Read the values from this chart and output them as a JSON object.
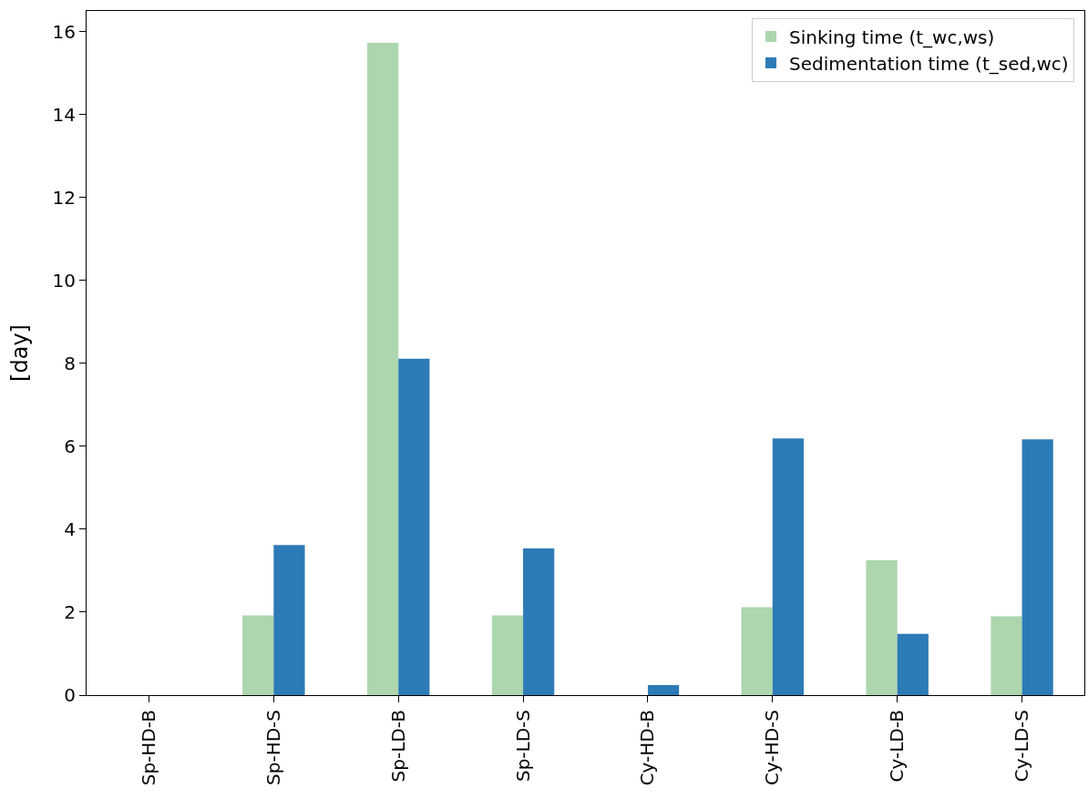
{
  "chart_data": {
    "type": "bar",
    "ylabel": "[day]",
    "categories": [
      "Sp-HD-B",
      "Sp-HD-S",
      "Sp-LD-B",
      "Sp-LD-S",
      "Cy-HD-B",
      "Cy-HD-S",
      "Cy-LD-B",
      "Cy-LD-S"
    ],
    "series": [
      {
        "name": "Sinking time (t_wc,ws)",
        "color": "#acd6ad",
        "values": [
          0,
          1.92,
          15.73,
          1.92,
          0,
          2.12,
          3.25,
          1.9
        ]
      },
      {
        "name": "Sedimentation time (t_sed,wc)",
        "color": "#2d7bb6",
        "values": [
          0,
          3.62,
          8.11,
          3.54,
          0.24,
          6.19,
          1.48,
          6.17
        ]
      }
    ],
    "ylim": [
      0,
      16.5
    ],
    "yticks": [
      0,
      2,
      4,
      6,
      8,
      10,
      12,
      14,
      16
    ],
    "grid": false,
    "legend": "top right"
  }
}
